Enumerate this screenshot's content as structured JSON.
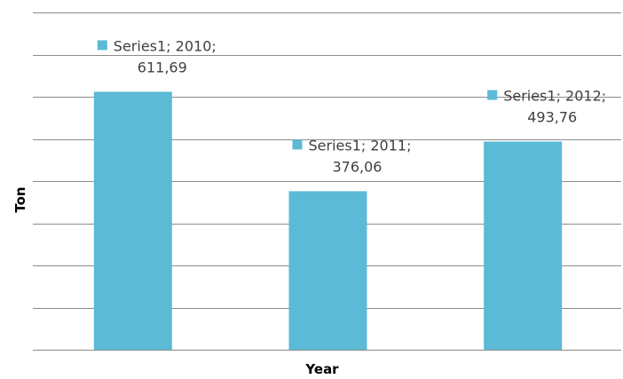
{
  "chart_data": {
    "type": "bar",
    "title": "",
    "xlabel": "Year",
    "ylabel": "Ton",
    "categories": [
      "2010",
      "2011",
      "2012"
    ],
    "series": [
      {
        "name": "Series1",
        "values": [
          611.69,
          376.06,
          493.76
        ]
      }
    ],
    "ylim": [
      0,
      800
    ],
    "y_gridlines": [
      0,
      100,
      200,
      300,
      400,
      500,
      600,
      700,
      800
    ],
    "grid": true,
    "legend": "none",
    "y_tick_labels_shown": false,
    "data_labels": [
      {
        "line1": "Series1; 2010;",
        "line2": "611,69"
      },
      {
        "line1": "Series1; 2011;",
        "line2": "376,06"
      },
      {
        "line1": "Series1; 2012;",
        "line2": "493,76"
      }
    ],
    "colors": {
      "bar": "#5bbad5",
      "grid": "#8c8c8c",
      "label": "#404040"
    }
  }
}
